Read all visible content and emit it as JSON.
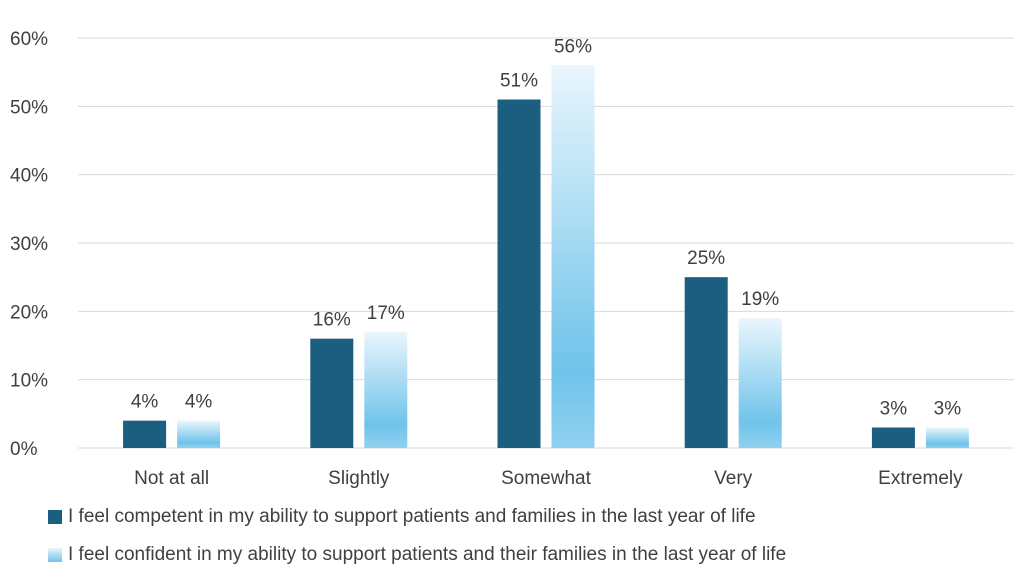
{
  "chart_data": {
    "type": "bar",
    "categories": [
      "Not at all",
      "Slightly",
      "Somewhat",
      "Very",
      "Extremely"
    ],
    "series": [
      {
        "name": "I feel competent in my ability to support patients and families in the last year of life",
        "values": [
          4,
          16,
          51,
          25,
          3
        ],
        "color": "#1b5e80"
      },
      {
        "name": "I feel confident in my ability to support patients and their families in the last year of life",
        "values": [
          4,
          17,
          56,
          19,
          3
        ],
        "color_top": "#eaf6fd",
        "color_bottom": "#6fc3ea"
      }
    ],
    "data_labels": [
      [
        "4%",
        "16%",
        "51%",
        "25%",
        "3%"
      ],
      [
        "4%",
        "17%",
        "56%",
        "19%",
        "3%"
      ]
    ],
    "y_ticks": [
      "0%",
      "10%",
      "20%",
      "30%",
      "40%",
      "50%",
      "60%"
    ],
    "ylim": [
      0,
      60
    ],
    "grid": true,
    "legend_position": "bottom"
  }
}
